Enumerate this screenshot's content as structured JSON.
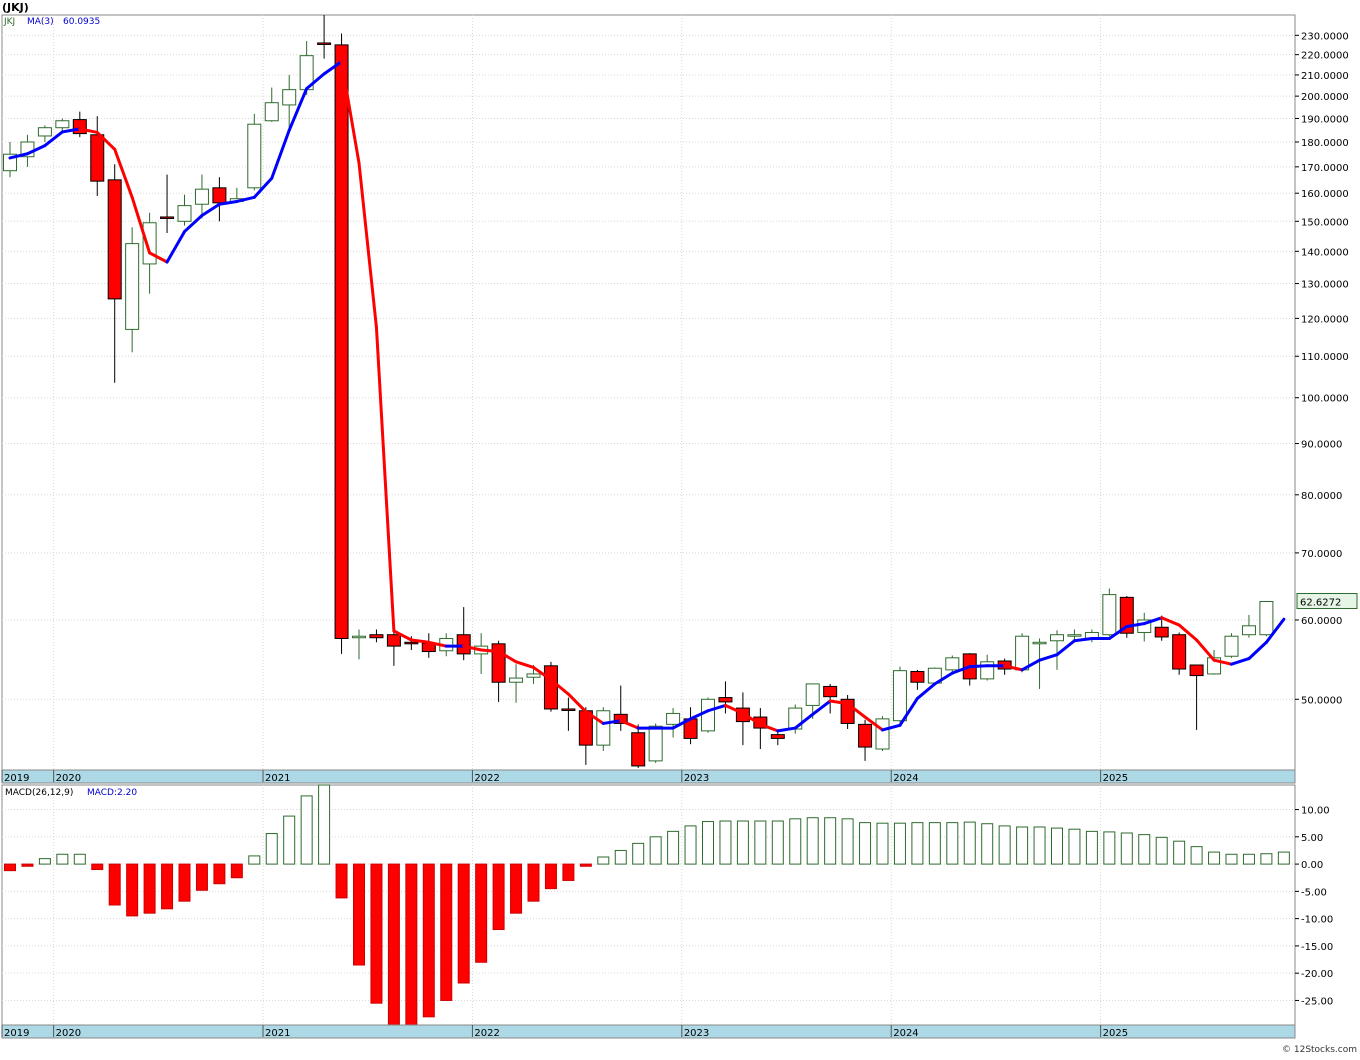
{
  "header": {
    "title": "(JKJ)"
  },
  "price_panel": {
    "legend_symbol": "JKJ",
    "legend_ma_label": "MA(3)",
    "legend_ma_value": "60.0935",
    "last_price_label": "62.6272",
    "scale": "log",
    "ylim": [
      42.5,
      241
    ],
    "y_ticks": [
      "50.0000",
      "60.0000",
      "70.0000",
      "80.0000",
      "90.0000",
      "100.0000",
      "110.0000",
      "120.0000",
      "130.0000",
      "140.0000",
      "150.0000",
      "160.0000",
      "170.0000",
      "180.0000",
      "190.0000",
      "200.0000",
      "210.0000",
      "220.0000",
      "230.0000"
    ]
  },
  "macd_panel": {
    "legend_label": "MACD(26,12,9)",
    "legend_value": "MACD:2.20",
    "ylim": [
      -29.5,
      14.5
    ],
    "y_ticks": [
      "10.00",
      "5.00",
      "0.00",
      "-5.00",
      "-10.00",
      "-15.00",
      "-20.00",
      "-25.00"
    ]
  },
  "x_axis": {
    "labels": [
      "2019",
      "2020",
      "2021",
      "2022",
      "2023",
      "2024",
      "2025"
    ]
  },
  "colors": {
    "up_candle_border": "#2e6b2e",
    "down_candle_fill": "#ff0000",
    "ma_up": "#0000ff",
    "ma_down": "#ff0000",
    "axis_band": "#add8e6",
    "grid": "#d8d8d8"
  },
  "footer": {
    "watermark": "© 12Stocks.com"
  },
  "chart_data": {
    "type": "candlestick",
    "frequency": "monthly",
    "price_scale": "log",
    "series": [
      {
        "name": "JKJ",
        "candles": [
          {
            "date": "2019-10",
            "o": 168.5,
            "h": 180.0,
            "l": 166.0,
            "c": 175.0
          },
          {
            "date": "2019-11",
            "o": 174.0,
            "h": 183.0,
            "l": 170.0,
            "c": 180.0
          },
          {
            "date": "2019-12",
            "o": 182.5,
            "h": 187.0,
            "l": 180.0,
            "c": 186.0
          },
          {
            "date": "2020-01",
            "o": 186.0,
            "h": 190.0,
            "l": 184.0,
            "c": 189.0
          },
          {
            "date": "2020-02",
            "o": 189.5,
            "h": 193.0,
            "l": 182.0,
            "c": 183.5
          },
          {
            "date": "2020-03",
            "o": 183.0,
            "h": 191.0,
            "l": 159.0,
            "c": 164.5
          },
          {
            "date": "2020-04",
            "o": 165.0,
            "h": 171.0,
            "l": 103.5,
            "c": 125.5
          },
          {
            "date": "2020-05",
            "o": 117.0,
            "h": 148.0,
            "l": 111.0,
            "c": 142.5
          },
          {
            "date": "2020-06",
            "o": 136.0,
            "h": 153.0,
            "l": 127.0,
            "c": 149.5
          },
          {
            "date": "2020-07",
            "o": 151.5,
            "h": 167.0,
            "l": 146.0,
            "c": 151.0
          },
          {
            "date": "2020-08",
            "o": 150.0,
            "h": 159.5,
            "l": 148.5,
            "c": 155.5
          },
          {
            "date": "2020-09",
            "o": 156.0,
            "h": 167.0,
            "l": 151.0,
            "c": 161.5
          },
          {
            "date": "2020-10",
            "o": 162.0,
            "h": 166.0,
            "l": 150.0,
            "c": 156.5
          },
          {
            "date": "2020-11",
            "o": 157.0,
            "h": 162.0,
            "l": 157.0,
            "c": 158.0
          },
          {
            "date": "2020-12",
            "o": 162.0,
            "h": 192.0,
            "l": 161.0,
            "c": 187.5
          },
          {
            "date": "2021-01",
            "o": 189.0,
            "h": 204.0,
            "l": 188.5,
            "c": 197.0
          },
          {
            "date": "2021-02",
            "o": 196.0,
            "h": 210.0,
            "l": 186.0,
            "c": 203.0
          },
          {
            "date": "2021-03",
            "o": 203.0,
            "h": 227.0,
            "l": 200.5,
            "c": 219.5
          },
          {
            "date": "2021-04",
            "o": 226.0,
            "h": 241.0,
            "l": 218.0,
            "c": 225.5
          },
          {
            "date": "2021-05",
            "o": 225.0,
            "h": 231.0,
            "l": 55.5,
            "c": 57.5
          },
          {
            "date": "2021-06",
            "o": 57.8,
            "h": 58.7,
            "l": 54.8,
            "c": 57.8
          },
          {
            "date": "2021-07",
            "o": 58.0,
            "h": 58.7,
            "l": 57.0,
            "c": 57.6
          },
          {
            "date": "2021-08",
            "o": 58.0,
            "h": 58.7,
            "l": 54.0,
            "c": 56.5
          },
          {
            "date": "2021-09",
            "o": 57.0,
            "h": 57.8,
            "l": 56.0,
            "c": 56.8
          },
          {
            "date": "2021-10",
            "o": 56.9,
            "h": 58.2,
            "l": 55.0,
            "c": 55.8
          },
          {
            "date": "2021-11",
            "o": 55.9,
            "h": 58.2,
            "l": 55.2,
            "c": 57.5
          },
          {
            "date": "2021-12",
            "o": 58.0,
            "h": 61.8,
            "l": 54.7,
            "c": 55.5
          },
          {
            "date": "2022-01",
            "o": 55.5,
            "h": 58.2,
            "l": 53.0,
            "c": 56.5
          },
          {
            "date": "2022-02",
            "o": 56.8,
            "h": 57.2,
            "l": 49.7,
            "c": 52.0
          },
          {
            "date": "2022-03",
            "o": 52.0,
            "h": 54.2,
            "l": 49.6,
            "c": 52.5
          },
          {
            "date": "2022-04",
            "o": 52.6,
            "h": 54.1,
            "l": 51.8,
            "c": 53.0
          },
          {
            "date": "2022-05",
            "o": 54.0,
            "h": 54.5,
            "l": 48.6,
            "c": 48.9
          },
          {
            "date": "2022-06",
            "o": 48.9,
            "h": 50.2,
            "l": 46.5,
            "c": 48.8
          },
          {
            "date": "2022-07",
            "o": 48.7,
            "h": 49.1,
            "l": 43.0,
            "c": 45.0
          },
          {
            "date": "2022-08",
            "o": 45.0,
            "h": 49.1,
            "l": 44.4,
            "c": 48.7
          },
          {
            "date": "2022-09",
            "o": 48.3,
            "h": 51.6,
            "l": 46.5,
            "c": 47.3
          },
          {
            "date": "2022-10",
            "o": 46.3,
            "h": 47.2,
            "l": 42.7,
            "c": 42.9
          },
          {
            "date": "2022-11",
            "o": 43.4,
            "h": 47.3,
            "l": 43.2,
            "c": 47.0
          },
          {
            "date": "2022-12",
            "o": 47.2,
            "h": 49.0,
            "l": 45.8,
            "c": 48.4
          },
          {
            "date": "2023-01",
            "o": 47.8,
            "h": 49.1,
            "l": 45.1,
            "c": 45.7
          },
          {
            "date": "2023-02",
            "o": 46.5,
            "h": 50.2,
            "l": 46.3,
            "c": 50.0
          },
          {
            "date": "2023-03",
            "o": 50.2,
            "h": 52.1,
            "l": 48.4,
            "c": 49.7
          },
          {
            "date": "2023-04",
            "o": 49.0,
            "h": 50.8,
            "l": 45.0,
            "c": 47.5
          },
          {
            "date": "2023-05",
            "o": 48.0,
            "h": 49.0,
            "l": 44.6,
            "c": 46.8
          },
          {
            "date": "2023-06",
            "o": 46.1,
            "h": 46.5,
            "l": 45.0,
            "c": 45.7
          },
          {
            "date": "2023-07",
            "o": 46.7,
            "h": 49.4,
            "l": 46.2,
            "c": 49.0
          },
          {
            "date": "2023-08",
            "o": 49.3,
            "h": 51.8,
            "l": 47.8,
            "c": 51.8
          },
          {
            "date": "2023-09",
            "o": 51.5,
            "h": 51.8,
            "l": 48.4,
            "c": 50.3
          },
          {
            "date": "2023-10",
            "o": 50.0,
            "h": 50.5,
            "l": 46.7,
            "c": 47.3
          },
          {
            "date": "2023-11",
            "o": 47.2,
            "h": 47.7,
            "l": 43.4,
            "c": 44.8
          },
          {
            "date": "2023-12",
            "o": 44.6,
            "h": 48.1,
            "l": 44.4,
            "c": 47.8
          },
          {
            "date": "2024-01",
            "o": 47.6,
            "h": 53.9,
            "l": 47.4,
            "c": 53.4
          },
          {
            "date": "2024-02",
            "o": 53.3,
            "h": 53.5,
            "l": 51.1,
            "c": 52.0
          },
          {
            "date": "2024-03",
            "o": 51.9,
            "h": 53.8,
            "l": 51.6,
            "c": 53.7
          },
          {
            "date": "2024-04",
            "o": 53.5,
            "h": 55.3,
            "l": 52.9,
            "c": 55.0
          },
          {
            "date": "2024-05",
            "o": 55.5,
            "h": 55.6,
            "l": 51.6,
            "c": 52.4
          },
          {
            "date": "2024-06",
            "o": 52.4,
            "h": 55.4,
            "l": 52.2,
            "c": 54.5
          },
          {
            "date": "2024-07",
            "o": 54.6,
            "h": 54.9,
            "l": 52.9,
            "c": 53.6
          },
          {
            "date": "2024-08",
            "o": 53.5,
            "h": 58.2,
            "l": 53.2,
            "c": 57.8
          },
          {
            "date": "2024-09",
            "o": 57.0,
            "h": 57.5,
            "l": 51.2,
            "c": 57.0
          },
          {
            "date": "2024-10",
            "o": 57.2,
            "h": 58.6,
            "l": 53.5,
            "c": 58.0
          },
          {
            "date": "2024-11",
            "o": 58.0,
            "h": 58.7,
            "l": 57.1,
            "c": 58.0
          },
          {
            "date": "2024-12",
            "o": 57.5,
            "h": 58.7,
            "l": 57.0,
            "c": 58.3
          },
          {
            "date": "2025-01",
            "o": 58.0,
            "h": 64.5,
            "l": 57.8,
            "c": 63.6
          },
          {
            "date": "2025-02",
            "o": 63.2,
            "h": 63.4,
            "l": 57.6,
            "c": 58.2
          },
          {
            "date": "2025-03",
            "o": 58.3,
            "h": 61.0,
            "l": 57.1,
            "c": 60.0
          },
          {
            "date": "2025-04",
            "o": 59.0,
            "h": 60.6,
            "l": 57.2,
            "c": 57.7
          },
          {
            "date": "2025-05",
            "o": 58.0,
            "h": 58.3,
            "l": 52.9,
            "c": 53.6
          },
          {
            "date": "2025-06",
            "o": 54.1,
            "h": 54.1,
            "l": 46.6,
            "c": 52.8
          },
          {
            "date": "2025-07",
            "o": 53.0,
            "h": 56.0,
            "l": 52.9,
            "c": 55.0
          },
          {
            "date": "2025-08",
            "o": 55.2,
            "h": 58.2,
            "l": 55.0,
            "c": 57.8
          },
          {
            "date": "2025-09",
            "o": 58.0,
            "h": 60.7,
            "l": 57.6,
            "c": 59.2
          },
          {
            "date": "2025-10",
            "o": 58.0,
            "h": 62.6,
            "l": 57.8,
            "c": 62.6
          }
        ]
      },
      {
        "name": "MA(3)",
        "values_from": "2019-10",
        "values": [
          173.5,
          175.2,
          178.5,
          184.2,
          185.5,
          184.0,
          177.0,
          158.5,
          139.5,
          136.6,
          146.5,
          152.0,
          156.0,
          157.0,
          158.5,
          165.6,
          184.9,
          203.5,
          210.5,
          216.5,
          171.5,
          117.5,
          58.5,
          57.3,
          57.0,
          56.5,
          56.5,
          56.0,
          55.8,
          54.5,
          53.8,
          52.3,
          50.6,
          48.6,
          47.3,
          47.6,
          46.8,
          46.8,
          46.8,
          47.8,
          48.7,
          49.3,
          48.4,
          47.2,
          46.5,
          46.8,
          48.3,
          49.8,
          49.5,
          48.0,
          46.6,
          47.1,
          50.1,
          51.8,
          53.1,
          53.9,
          54.0,
          54.0,
          53.5,
          54.7,
          55.4,
          57.2,
          57.5,
          57.5,
          59.1,
          59.5,
          60.3,
          59.3,
          57.3,
          54.7,
          54.2,
          54.9,
          57.0,
          60.1
        ],
        "color_up": "#0000ff",
        "color_down": "#ff0000"
      }
    ],
    "macd": {
      "name": "MACD(26,12,9)",
      "last": 2.2,
      "values_from": "2019-10",
      "values": [
        -1.2,
        -0.4,
        1.0,
        1.8,
        1.8,
        -1.0,
        -7.5,
        -9.5,
        -9.0,
        -8.2,
        -6.8,
        -4.8,
        -3.6,
        -2.5,
        1.5,
        5.6,
        8.8,
        12.5,
        14.5,
        -6.2,
        -18.5,
        -25.5,
        -29.5,
        -29.5,
        -28.0,
        -25.0,
        -21.8,
        -18.0,
        -12.0,
        -9.0,
        -6.8,
        -4.5,
        -3.0,
        -0.4,
        1.3,
        2.5,
        3.8,
        5.0,
        6.0,
        7.0,
        7.8,
        7.9,
        7.9,
        7.9,
        7.9,
        8.3,
        8.5,
        8.5,
        8.3,
        7.6,
        7.5,
        7.5,
        7.6,
        7.6,
        7.6,
        7.7,
        7.4,
        7.0,
        6.8,
        6.8,
        6.6,
        6.4,
        6.0,
        5.9,
        5.7,
        5.4,
        4.9,
        4.2,
        3.2,
        2.2,
        1.8,
        1.8,
        1.9,
        2.2
      ]
    },
    "x_axis_labels": [
      "2019",
      "2020",
      "2021",
      "2022",
      "2023",
      "2024",
      "2025"
    ],
    "legend_placement": "top-left",
    "grid": true
  }
}
